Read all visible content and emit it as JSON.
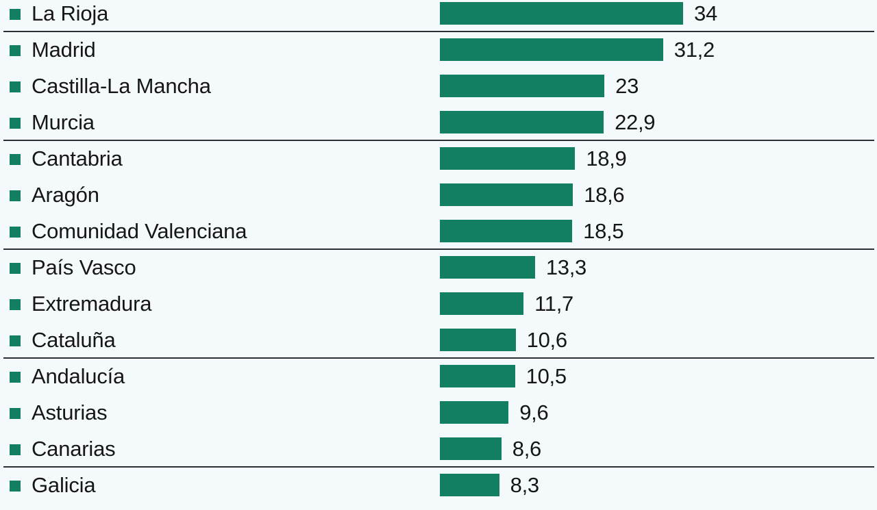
{
  "chart_data": {
    "type": "bar",
    "orientation": "horizontal",
    "title": "",
    "xlabel": "",
    "ylabel": "",
    "bar_color": "#127f63",
    "decimal_separator": ",",
    "categories": [
      "La Rioja",
      "Madrid",
      "Castilla-La Mancha",
      "Murcia",
      "Cantabria",
      "Aragón",
      "Comunidad Valenciana",
      "País Vasco",
      "Extremadura",
      "Cataluña",
      "Andalucía",
      "Asturias",
      "Canarias",
      "Galicia"
    ],
    "values": [
      34,
      31.2,
      23,
      22.9,
      18.9,
      18.6,
      18.5,
      13.3,
      11.7,
      10.6,
      10.5,
      9.6,
      8.6,
      8.3
    ],
    "value_labels": [
      "34",
      "31,2",
      "23",
      "22,9",
      "18,9",
      "18,6",
      "18,5",
      "13,3",
      "11,7",
      "10,6",
      "10,5",
      "9,6",
      "8,6",
      "8,3"
    ],
    "group_dividers_after_index": [
      0,
      3,
      6,
      9,
      12
    ],
    "grid": false,
    "legend": "none"
  },
  "colors": {
    "bar": "#127f63",
    "marker": "#127f63",
    "divider": "#2b2f33",
    "background": "#f4fafc",
    "text": "#161616"
  }
}
